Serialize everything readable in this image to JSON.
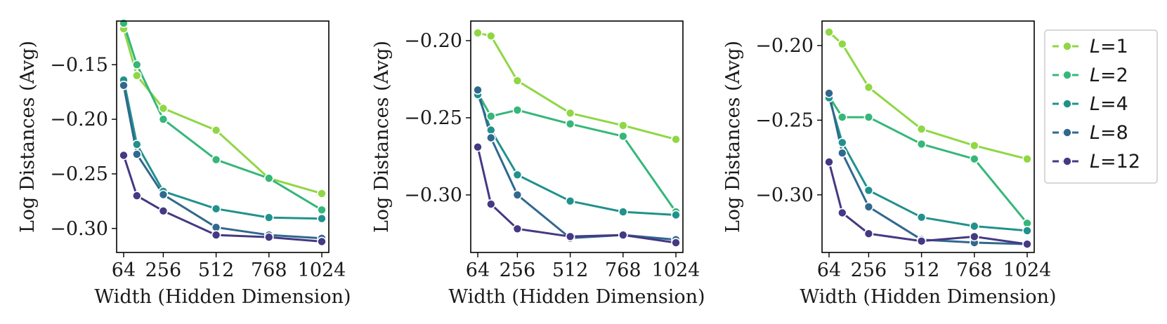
{
  "figure": {
    "legend_entries": [
      {
        "var": "L",
        "eq": "=1",
        "color": "#8fd744"
      },
      {
        "var": "L",
        "eq": "=2",
        "color": "#35b779"
      },
      {
        "var": "L",
        "eq": "=4",
        "color": "#21918c"
      },
      {
        "var": "L",
        "eq": "=8",
        "color": "#31688e"
      },
      {
        "var": "L",
        "eq": "=12",
        "color": "#443983"
      }
    ]
  },
  "chart_data": [
    {
      "type": "line",
      "xlabel": "Width (Hidden Dimension)",
      "ylabel": "Log Distances (Avg)",
      "x": [
        64,
        128,
        256,
        512,
        768,
        1024
      ],
      "xticks": [
        64,
        256,
        512,
        768,
        1024
      ],
      "xlim": [
        30,
        1058
      ],
      "yticks": [
        -0.15,
        -0.2,
        -0.25,
        -0.3
      ],
      "ytick_labels": [
        "−0.15",
        "−0.20",
        "−0.25",
        "−0.30"
      ],
      "ylim": [
        -0.322,
        -0.11
      ],
      "grid": false,
      "series": [
        {
          "name": "L=1",
          "color": "#8fd744",
          "values": [
            -0.117,
            -0.16,
            -0.19,
            -0.21,
            -0.254,
            -0.268
          ]
        },
        {
          "name": "L=2",
          "color": "#35b779",
          "values": [
            -0.112,
            -0.15,
            -0.2,
            -0.237,
            -0.254,
            -0.283
          ]
        },
        {
          "name": "L=4",
          "color": "#21918c",
          "values": [
            -0.164,
            -0.223,
            -0.266,
            -0.282,
            -0.29,
            -0.291
          ]
        },
        {
          "name": "L=8",
          "color": "#31688e",
          "values": [
            -0.169,
            -0.232,
            -0.269,
            -0.299,
            -0.306,
            -0.309
          ]
        },
        {
          "name": "L=12",
          "color": "#443983",
          "values": [
            -0.233,
            -0.27,
            -0.284,
            -0.306,
            -0.308,
            -0.312
          ]
        }
      ]
    },
    {
      "type": "line",
      "xlabel": "Width (Hidden Dimension)",
      "ylabel": "Log Distances (Avg)",
      "x": [
        64,
        128,
        256,
        512,
        768,
        1024
      ],
      "xticks": [
        64,
        256,
        512,
        768,
        1024
      ],
      "xlim": [
        30,
        1058
      ],
      "yticks": [
        -0.2,
        -0.25,
        -0.3
      ],
      "ytick_labels": [
        "−0.20",
        "−0.25",
        "−0.30"
      ],
      "ylim": [
        -0.3373,
        -0.1873
      ],
      "grid": false,
      "series": [
        {
          "name": "L=1",
          "color": "#8fd744",
          "values": [
            -0.195,
            -0.197,
            -0.226,
            -0.247,
            -0.255,
            -0.264
          ]
        },
        {
          "name": "L=2",
          "color": "#35b779",
          "values": [
            -0.234,
            -0.249,
            -0.245,
            -0.254,
            -0.262,
            -0.311
          ]
        },
        {
          "name": "L=4",
          "color": "#21918c",
          "values": [
            -0.235,
            -0.258,
            -0.287,
            -0.304,
            -0.311,
            -0.313
          ]
        },
        {
          "name": "L=8",
          "color": "#31688e",
          "values": [
            -0.232,
            -0.263,
            -0.3,
            -0.328,
            -0.326,
            -0.329
          ]
        },
        {
          "name": "L=12",
          "color": "#443983",
          "values": [
            -0.269,
            -0.306,
            -0.322,
            -0.327,
            -0.326,
            -0.331
          ]
        }
      ]
    },
    {
      "type": "line",
      "xlabel": "Width (Hidden Dimension)",
      "ylabel": "Log Distances (Avg)",
      "x": [
        64,
        128,
        256,
        512,
        768,
        1024
      ],
      "xticks": [
        64,
        256,
        512,
        768,
        1024
      ],
      "xlim": [
        30,
        1058
      ],
      "yticks": [
        -0.2,
        -0.25,
        -0.3
      ],
      "ytick_labels": [
        "−0.20",
        "−0.25",
        "−0.30"
      ],
      "ylim": [
        -0.3386,
        -0.1836
      ],
      "grid": false,
      "series": [
        {
          "name": "L=1",
          "color": "#8fd744",
          "values": [
            -0.191,
            -0.199,
            -0.228,
            -0.256,
            -0.267,
            -0.276
          ]
        },
        {
          "name": "L=2",
          "color": "#35b779",
          "values": [
            -0.234,
            -0.248,
            -0.248,
            -0.266,
            -0.276,
            -0.319
          ]
        },
        {
          "name": "L=4",
          "color": "#21918c",
          "values": [
            -0.235,
            -0.265,
            -0.297,
            -0.315,
            -0.321,
            -0.324
          ]
        },
        {
          "name": "L=8",
          "color": "#31688e",
          "values": [
            -0.232,
            -0.272,
            -0.308,
            -0.33,
            -0.332,
            -0.333
          ]
        },
        {
          "name": "L=12",
          "color": "#443983",
          "values": [
            -0.278,
            -0.312,
            -0.326,
            -0.331,
            -0.328,
            -0.333
          ]
        }
      ]
    }
  ]
}
